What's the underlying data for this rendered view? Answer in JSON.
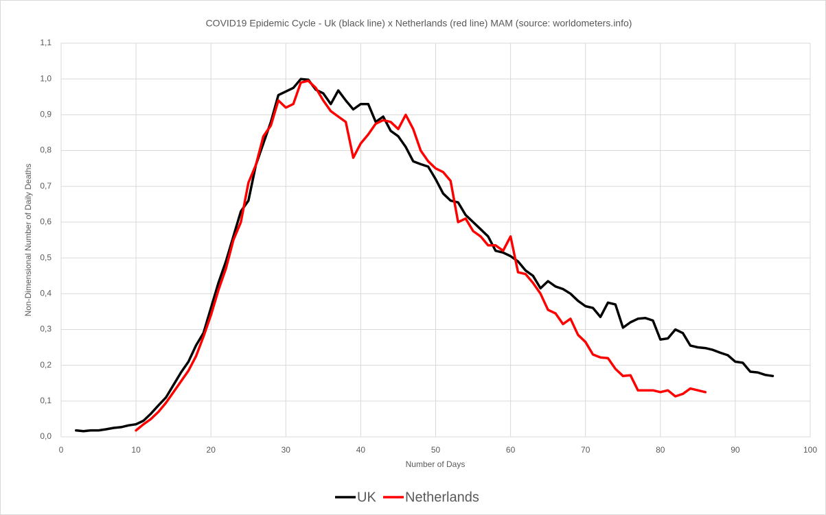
{
  "chart_data": {
    "type": "line",
    "title": "COVID19 Epidemic Cycle - Uk (black line) x Netherlands (red line) MAM (source: worldometers.info)",
    "x_label": "Number of Days",
    "y_label": "Non-Dimensional Number of Daily Deaths",
    "xlim": [
      0,
      100
    ],
    "xticks": [
      0,
      10,
      20,
      30,
      40,
      50,
      60,
      70,
      80,
      90,
      100
    ],
    "ylim": [
      0,
      1.1
    ],
    "yticks": [
      {
        "value": 0,
        "label": "0,0"
      },
      {
        "value": 0.1,
        "label": "0,1"
      },
      {
        "value": 0.2,
        "label": "0,2"
      },
      {
        "value": 0.3,
        "label": "0,3"
      },
      {
        "value": 0.4,
        "label": "0,4"
      },
      {
        "value": 0.5,
        "label": "0,5"
      },
      {
        "value": 0.6,
        "label": "0,6"
      },
      {
        "value": 0.7,
        "label": "0,7"
      },
      {
        "value": 0.8,
        "label": "0,8"
      },
      {
        "value": 0.9,
        "label": "0,9"
      },
      {
        "value": 1.0,
        "label": "1,0"
      },
      {
        "value": 1.1,
        "label": "1,1"
      }
    ],
    "grid": true,
    "legend": "bottom",
    "series": [
      {
        "name": "UK",
        "color": "#000000",
        "x": [
          2,
          3,
          4,
          5,
          6,
          7,
          8,
          9,
          10,
          11,
          12,
          13,
          14,
          15,
          16,
          17,
          18,
          19,
          20,
          21,
          22,
          23,
          24,
          25,
          26,
          27,
          28,
          29,
          30,
          31,
          32,
          33,
          34,
          35,
          36,
          37,
          38,
          39,
          40,
          41,
          42,
          43,
          44,
          45,
          46,
          47,
          48,
          49,
          50,
          51,
          52,
          53,
          54,
          55,
          56,
          57,
          58,
          59,
          60,
          61,
          62,
          63,
          64,
          65,
          66,
          67,
          68,
          69,
          70,
          71,
          72,
          73,
          74,
          75,
          76,
          77,
          78,
          79,
          80,
          81,
          82,
          83,
          84,
          85,
          86,
          87,
          88,
          89,
          90,
          91,
          92,
          93,
          94,
          95
        ],
        "values": [
          0.018,
          0.016,
          0.018,
          0.018,
          0.021,
          0.025,
          0.027,
          0.032,
          0.035,
          0.045,
          0.065,
          0.088,
          0.11,
          0.145,
          0.18,
          0.21,
          0.255,
          0.29,
          0.36,
          0.43,
          0.49,
          0.56,
          0.63,
          0.66,
          0.76,
          0.82,
          0.88,
          0.955,
          0.965,
          0.975,
          1.0,
          0.998,
          0.97,
          0.96,
          0.93,
          0.968,
          0.94,
          0.915,
          0.93,
          0.93,
          0.88,
          0.895,
          0.855,
          0.84,
          0.81,
          0.77,
          0.762,
          0.755,
          0.72,
          0.68,
          0.66,
          0.655,
          0.62,
          0.6,
          0.58,
          0.56,
          0.52,
          0.515,
          0.505,
          0.49,
          0.465,
          0.45,
          0.415,
          0.435,
          0.42,
          0.413,
          0.4,
          0.38,
          0.365,
          0.36,
          0.335,
          0.375,
          0.37,
          0.305,
          0.32,
          0.33,
          0.332,
          0.325,
          0.272,
          0.275,
          0.3,
          0.29,
          0.255,
          0.25,
          0.248,
          0.243,
          0.235,
          0.228,
          0.21,
          0.207,
          0.182,
          0.18,
          0.173,
          0.17
        ]
      },
      {
        "name": "Netherlands",
        "color": "#ff0000",
        "x": [
          10,
          11,
          12,
          13,
          14,
          15,
          16,
          17,
          18,
          19,
          20,
          21,
          22,
          23,
          24,
          25,
          26,
          27,
          28,
          29,
          30,
          31,
          32,
          33,
          34,
          35,
          36,
          37,
          38,
          39,
          40,
          41,
          42,
          43,
          44,
          45,
          46,
          47,
          48,
          49,
          50,
          51,
          52,
          53,
          54,
          55,
          56,
          57,
          58,
          59,
          60,
          61,
          62,
          63,
          64,
          65,
          66,
          67,
          68,
          69,
          70,
          71,
          72,
          73,
          74,
          75,
          76,
          77,
          78,
          79,
          80,
          81,
          82,
          83,
          84,
          85,
          86
        ],
        "values": [
          0.018,
          0.035,
          0.05,
          0.07,
          0.095,
          0.125,
          0.155,
          0.185,
          0.225,
          0.28,
          0.34,
          0.41,
          0.47,
          0.55,
          0.6,
          0.71,
          0.76,
          0.84,
          0.87,
          0.94,
          0.92,
          0.93,
          0.99,
          0.995,
          0.975,
          0.94,
          0.91,
          0.895,
          0.88,
          0.78,
          0.82,
          0.845,
          0.875,
          0.885,
          0.88,
          0.86,
          0.9,
          0.86,
          0.8,
          0.77,
          0.75,
          0.74,
          0.715,
          0.6,
          0.61,
          0.575,
          0.56,
          0.535,
          0.535,
          0.52,
          0.56,
          0.46,
          0.455,
          0.43,
          0.4,
          0.355,
          0.345,
          0.315,
          0.33,
          0.285,
          0.265,
          0.23,
          0.222,
          0.22,
          0.19,
          0.17,
          0.172,
          0.13,
          0.13,
          0.13,
          0.125,
          0.13,
          0.113,
          0.12,
          0.135,
          0.13,
          0.125
        ]
      }
    ]
  }
}
